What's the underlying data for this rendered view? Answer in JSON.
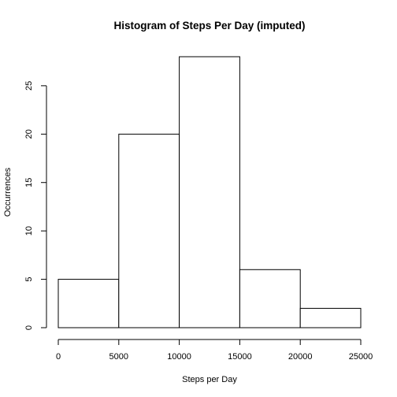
{
  "chart_data": {
    "type": "bar",
    "title": "Histogram of Steps Per Day (imputed)",
    "xlabel": "Steps per Day",
    "ylabel": "Occurrences",
    "bins": [
      {
        "from": 0,
        "to": 5000,
        "count": 5
      },
      {
        "from": 5000,
        "to": 10000,
        "count": 20
      },
      {
        "from": 10000,
        "to": 15000,
        "count": 28
      },
      {
        "from": 15000,
        "to": 20000,
        "count": 6
      },
      {
        "from": 20000,
        "to": 25000,
        "count": 2
      }
    ],
    "x_ticks": [
      {
        "value": 0,
        "label": "0"
      },
      {
        "value": 5000,
        "label": "5000"
      },
      {
        "value": 10000,
        "label": "10000"
      },
      {
        "value": 15000,
        "label": "15000"
      },
      {
        "value": 20000,
        "label": "20000"
      },
      {
        "value": 25000,
        "label": "25000"
      }
    ],
    "y_ticks": [
      {
        "value": 0,
        "label": "0"
      },
      {
        "value": 5,
        "label": "5"
      },
      {
        "value": 10,
        "label": "10"
      },
      {
        "value": 15,
        "label": "15"
      },
      {
        "value": 20,
        "label": "20"
      },
      {
        "value": 25,
        "label": "25"
      }
    ],
    "xlim": [
      0,
      25000
    ],
    "ylim": [
      0,
      28
    ],
    "grid": false,
    "bar_fill": "#ffffff",
    "bar_stroke": "#000000"
  }
}
